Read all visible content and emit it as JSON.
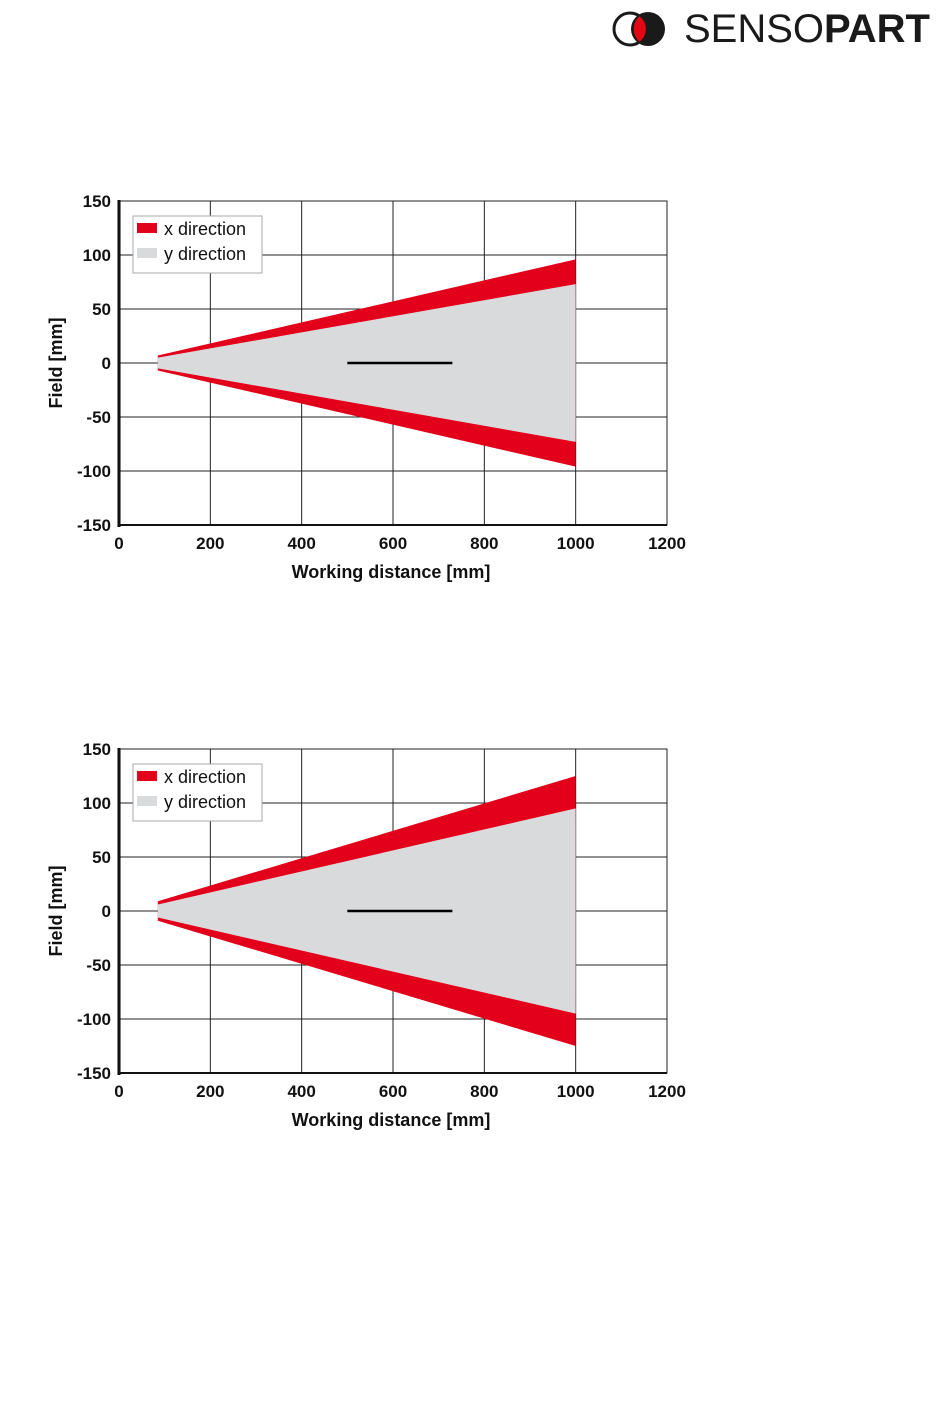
{
  "brand": {
    "name_thin": "SENSO",
    "name_bold": "PART",
    "logo_icon": "two-overlapping-circles-icon",
    "colors": {
      "red": "#e30613",
      "black": "#1a1a1a"
    }
  },
  "colors": {
    "x_direction": "#e2001a",
    "y_direction": "#d9dadb",
    "grid": "#222222",
    "scale_bar": "#000000"
  },
  "chart_data": [
    {
      "type": "area",
      "title": "",
      "xlabel": "Working distance [mm]",
      "ylabel": "Field [mm]",
      "xlim": [
        0,
        1200
      ],
      "ylim": [
        -150,
        150
      ],
      "xticks": [
        0,
        200,
        400,
        600,
        800,
        1000,
        1200
      ],
      "yticks": [
        150,
        100,
        50,
        0,
        -50,
        -100,
        -150
      ],
      "grid": true,
      "legend": "top-left",
      "series": [
        {
          "name": "x direction",
          "x": [
            85,
            1000
          ],
          "upper": [
            7,
            96
          ],
          "lower": [
            -7,
            -96
          ]
        },
        {
          "name": "y direction",
          "x": [
            85,
            1000
          ],
          "upper": [
            5,
            73
          ],
          "lower": [
            -5,
            -73
          ]
        }
      ],
      "scale_bar": {
        "x": [
          500,
          730
        ],
        "y": 0
      }
    },
    {
      "type": "area",
      "title": "",
      "xlabel": "Working distance [mm]",
      "ylabel": "Field [mm]",
      "xlim": [
        0,
        1200
      ],
      "ylim": [
        -150,
        150
      ],
      "xticks": [
        0,
        200,
        400,
        600,
        800,
        1000,
        1200
      ],
      "yticks": [
        150,
        100,
        50,
        0,
        -50,
        -100,
        -150
      ],
      "grid": true,
      "legend": "top-left",
      "series": [
        {
          "name": "x direction",
          "x": [
            85,
            1000
          ],
          "upper": [
            9,
            125
          ],
          "lower": [
            -9,
            -125
          ]
        },
        {
          "name": "y direction",
          "x": [
            85,
            1000
          ],
          "upper": [
            6,
            95
          ],
          "lower": [
            -6,
            -95
          ]
        }
      ],
      "scale_bar": {
        "x": [
          500,
          730
        ],
        "y": 0
      }
    }
  ]
}
